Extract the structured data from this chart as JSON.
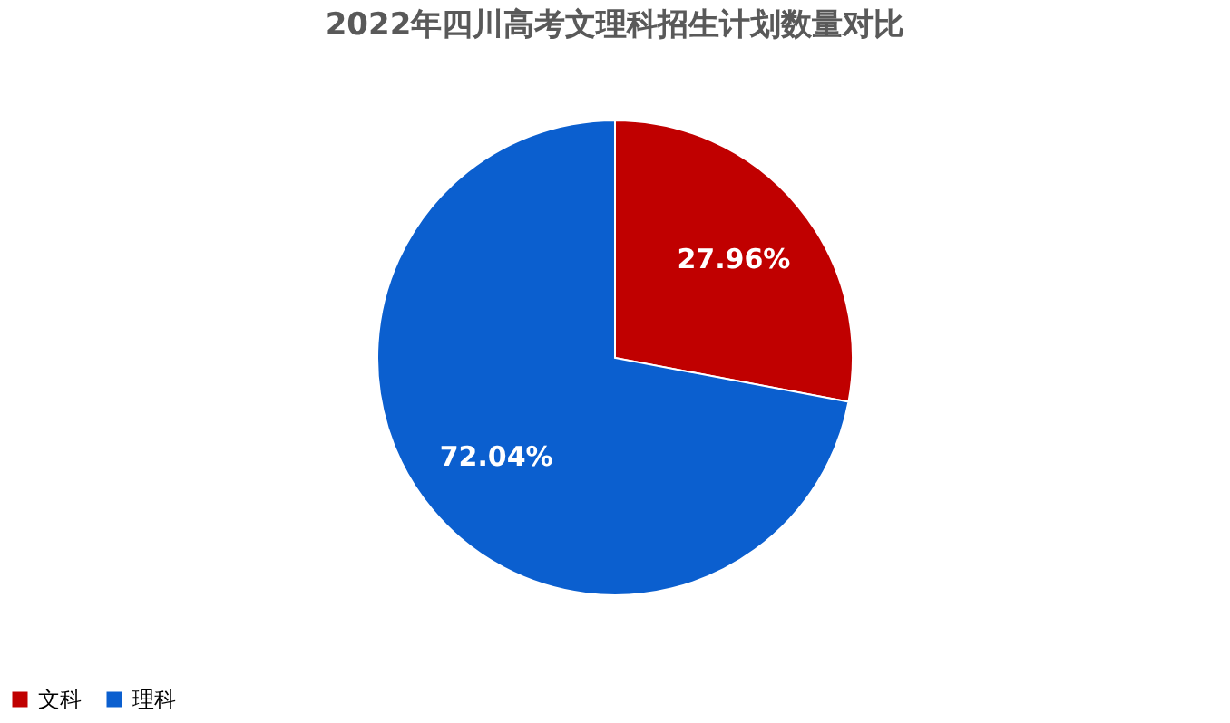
{
  "chart_data": {
    "type": "pie",
    "title": "2022年四川高考文理科招生计划数量对比",
    "categories": [
      "文科",
      "理科"
    ],
    "values": [
      27.96,
      72.04
    ],
    "colors": [
      "#c00000",
      "#0b5fcf"
    ],
    "value_labels": [
      "27.96%",
      "72.04%"
    ],
    "legend": "bottom"
  }
}
